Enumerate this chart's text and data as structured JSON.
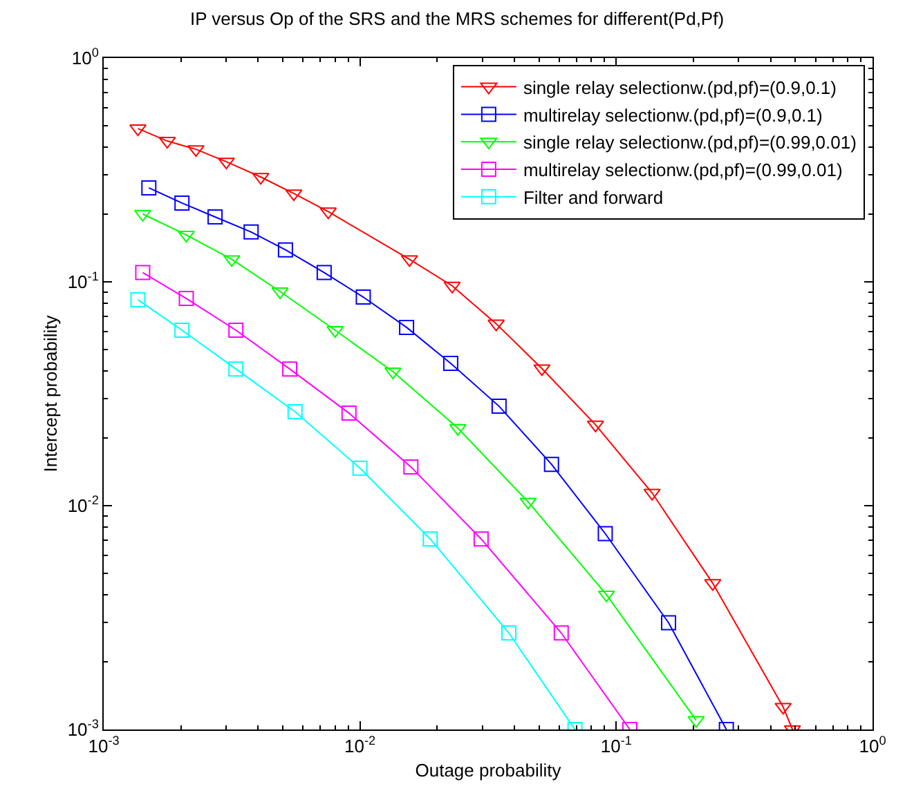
{
  "chart_data": {
    "type": "line",
    "title": "IP versus Op of the SRS and the MRS schemes for different(Pd,Pf)",
    "xlabel": "Outage probability",
    "ylabel": "Intercept probability",
    "log": "xy",
    "legend": "top right",
    "line_style": "solid",
    "xlim": [
      0.001,
      1
    ],
    "ylim": [
      0.001,
      1
    ],
    "xticks": [
      {
        "value": 0.001,
        "label": "10$^{-3}$"
      },
      {
        "value": 0.01,
        "label": "10$^{-2}$"
      },
      {
        "value": 0.1,
        "label": "10$^{-1}$"
      },
      {
        "value": 1,
        "label": "10$^{0}$"
      }
    ],
    "yticks": [
      {
        "value": 0.001,
        "label": "10$^{-3}$"
      },
      {
        "value": 0.01,
        "label": "10$^{-2}$"
      },
      {
        "value": 0.1,
        "label": "10$^{-1}$"
      },
      {
        "value": 1,
        "label": "10$^{0}$"
      }
    ],
    "series": [
      {
        "name": "single relay selectionw.(pd,pf)=(0.9,0.1)",
        "color": "#ff0000",
        "marker": "triangle",
        "x": [
          0.00136,
          0.00177,
          0.00229,
          0.00301,
          0.0041,
          0.00552,
          0.00752,
          0.0156,
          0.0229,
          0.034,
          0.0513,
          0.083,
          0.138,
          0.238,
          0.448,
          0.487
        ],
        "values": [
          0.484,
          0.426,
          0.391,
          0.344,
          0.294,
          0.248,
          0.206,
          0.126,
          0.096,
          0.065,
          0.041,
          0.023,
          0.0114,
          0.0045,
          0.00126,
          0.001
        ]
      },
      {
        "name": "multirelay selectionw.(pd,pf)=(0.9,0.1)",
        "color": "#0000ff",
        "marker": "square",
        "x": [
          0.0015,
          0.00202,
          0.00272,
          0.00376,
          0.00512,
          0.00725,
          0.0103,
          0.0152,
          0.0226,
          0.0349,
          0.0559,
          0.0906,
          0.16,
          0.269
        ],
        "values": [
          0.263,
          0.225,
          0.195,
          0.167,
          0.139,
          0.11,
          0.0855,
          0.0626,
          0.0432,
          0.0278,
          0.0153,
          0.0075,
          0.003,
          0.001
        ]
      },
      {
        "name": "single relay selectionw.(pd,pf)=(0.99,0.01)",
        "color": "#00ff00",
        "marker": "triangle",
        "x": [
          0.00142,
          0.0021,
          0.00316,
          0.00488,
          0.008,
          0.01345,
          0.0241,
          0.0453,
          0.0916,
          0.205
        ],
        "values": [
          0.201,
          0.162,
          0.126,
          0.0905,
          0.0608,
          0.0397,
          0.0222,
          0.0104,
          0.004,
          0.0011
        ]
      },
      {
        "name": "multirelay selectionw.(pd,pf)=(0.99,0.01)",
        "color": "#ff00ff",
        "marker": "square",
        "x": [
          0.00142,
          0.0021,
          0.00328,
          0.00532,
          0.00906,
          0.0158,
          0.0297,
          0.061,
          0.113
        ],
        "values": [
          0.11,
          0.0843,
          0.0608,
          0.0408,
          0.0259,
          0.0149,
          0.0071,
          0.0027,
          0.001
        ]
      },
      {
        "name": "Filter and forward",
        "color": "#00ffff",
        "marker": "square",
        "x": [
          0.00136,
          0.00202,
          0.00328,
          0.00558,
          0.01,
          0.0188,
          0.0381,
          0.069
        ],
        "values": [
          0.0832,
          0.0608,
          0.0408,
          0.0263,
          0.0147,
          0.0071,
          0.0027,
          0.001
        ]
      }
    ]
  }
}
